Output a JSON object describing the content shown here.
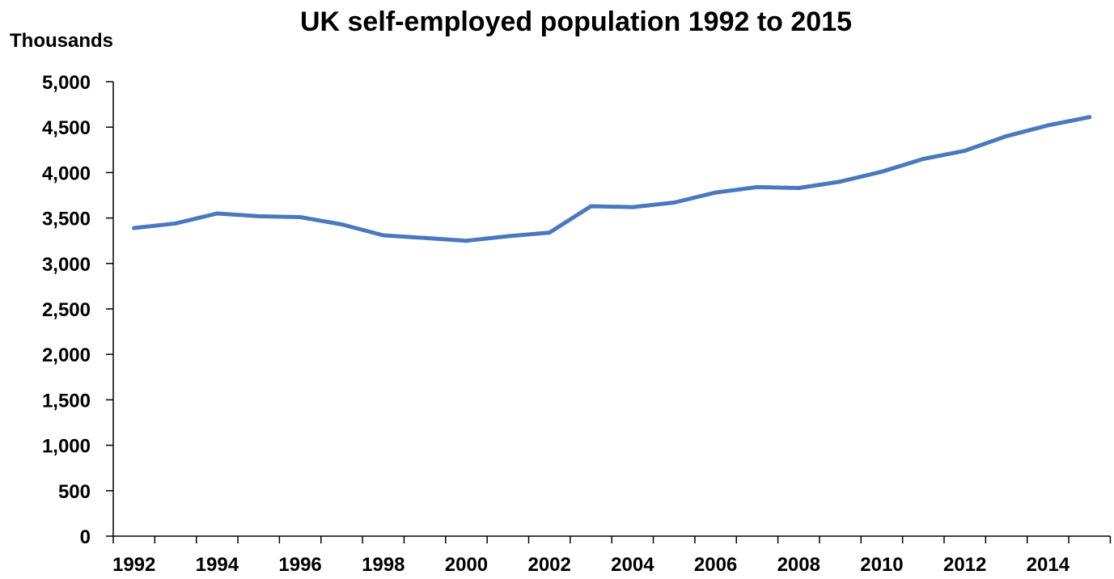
{
  "chart_data": {
    "type": "line",
    "title": "UK self-employed population 1992 to 2015",
    "xlabel": "",
    "ylabel": "Thousands",
    "x": [
      1992,
      1993,
      1994,
      1995,
      1996,
      1997,
      1998,
      1999,
      2000,
      2001,
      2002,
      2003,
      2004,
      2005,
      2006,
      2007,
      2008,
      2009,
      2010,
      2011,
      2012,
      2013,
      2014,
      2015
    ],
    "x_ticks": [
      "1992",
      "1994",
      "1996",
      "1998",
      "2000",
      "2002",
      "2004",
      "2006",
      "2008",
      "2010",
      "2012",
      "2014"
    ],
    "y_ticks": [
      "0",
      "500",
      "1,000",
      "1,500",
      "2,000",
      "2,500",
      "3,000",
      "3,500",
      "4,000",
      "4,500",
      "5,000"
    ],
    "ylim": [
      0,
      5000
    ],
    "grid": false,
    "series": [
      {
        "color": "#4a78bf",
        "values": [
          3390,
          3440,
          3550,
          3520,
          3510,
          3430,
          3310,
          3280,
          3250,
          3300,
          3340,
          3630,
          3620,
          3670,
          3780,
          3840,
          3830,
          3900,
          4010,
          4150,
          4240,
          4400,
          4520,
          4610
        ]
      }
    ]
  }
}
